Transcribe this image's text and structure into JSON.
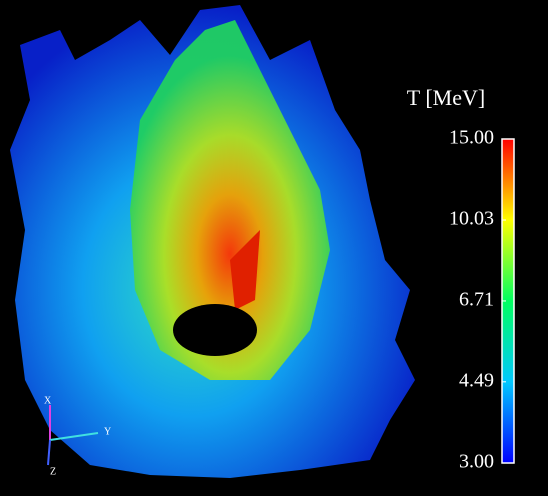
{
  "chart_data": {
    "type": "surface",
    "colorbar": {
      "title": "T [MeV]",
      "lim": [
        3,
        15
      ],
      "log": true,
      "ticks": [
        {
          "value": 3,
          "label": "3.00"
        },
        {
          "value": 4.49,
          "label": "4.49"
        },
        {
          "value": 6.71,
          "label": "6.71"
        },
        {
          "value": 10.03,
          "label": "10.03"
        },
        {
          "value": 15,
          "label": "15.00"
        }
      ],
      "colors": [
        "#0000ff",
        "#00c8ff",
        "#00ff60",
        "#ffff00",
        "#ff0000"
      ]
    },
    "axes_labels": [
      "X",
      "Y",
      "Z"
    ]
  }
}
